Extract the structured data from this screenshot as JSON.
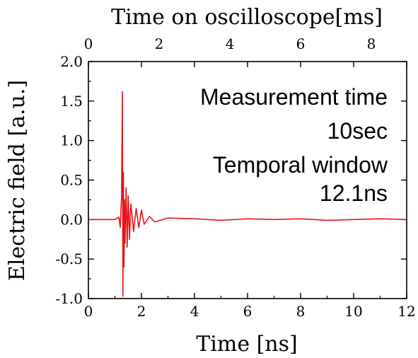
{
  "chart_data": {
    "type": "line",
    "xlabel": "Time [ns]",
    "ylabel": "Electric field [a.u.]",
    "x2label": "Time on oscilloscope[ms]",
    "xlim": [
      0,
      12
    ],
    "ylim": [
      -1.0,
      2.0
    ],
    "x2lim": [
      0,
      9
    ],
    "x_ticks": [
      0,
      2,
      4,
      6,
      8,
      10,
      12
    ],
    "x_tick_labels": [
      "0",
      "2",
      "4",
      "6",
      "8",
      "10",
      "12"
    ],
    "y_ticks": [
      -1.0,
      -0.5,
      0.0,
      0.5,
      1.0,
      1.5,
      2.0
    ],
    "y_tick_labels": [
      "-1.0",
      "-0.5",
      "0.0",
      "0.5",
      "1.0",
      "1.5",
      "2.0"
    ],
    "x2_ticks": [
      0,
      2,
      4,
      6,
      8
    ],
    "x2_tick_labels": [
      "0",
      "2",
      "4",
      "6",
      "8"
    ],
    "grid": false,
    "annotations": [
      "Measurement time",
      "10sec",
      "Temporal window",
      "12.1ns"
    ],
    "series": [
      {
        "color": "#e8141b",
        "x": [
          0.0,
          1.0,
          1.15,
          1.2,
          1.25,
          1.28,
          1.3,
          1.32,
          1.34,
          1.36,
          1.38,
          1.42,
          1.46,
          1.5,
          1.55,
          1.6,
          1.7,
          1.8,
          1.9,
          2.0,
          2.1,
          2.3,
          2.5,
          3.0,
          4.0,
          5.0,
          6.0,
          7.0,
          8.0,
          9.0,
          10.0,
          11.0,
          12.0
        ],
        "y": [
          0.0,
          0.0,
          0.03,
          -0.1,
          0.3,
          1.62,
          -0.97,
          0.6,
          -0.6,
          0.25,
          -0.3,
          0.4,
          -0.35,
          0.3,
          -0.25,
          0.2,
          -0.15,
          0.14,
          -0.1,
          0.12,
          -0.06,
          0.04,
          -0.03,
          0.02,
          0.01,
          -0.01,
          0.01,
          0.0,
          0.01,
          -0.01,
          0.0,
          0.01,
          0.0
        ]
      }
    ]
  }
}
